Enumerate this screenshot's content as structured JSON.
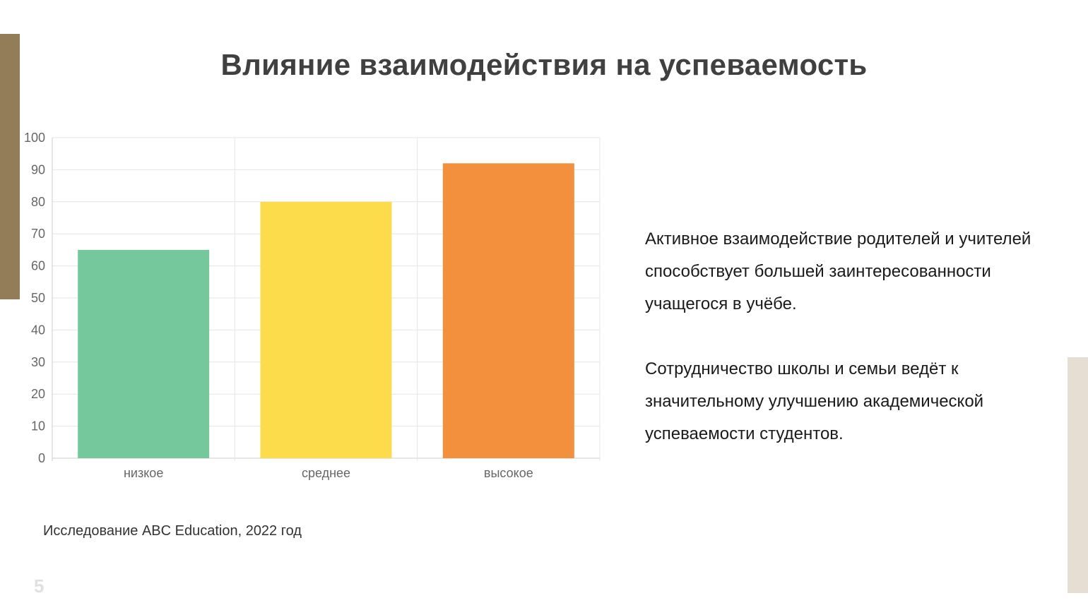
{
  "slide": {
    "title": "Влияние взаимодействия на успеваемость",
    "paragraphs": [
      "Активное взаимодействие родителей и учителей способствует большей заинтересованности учащегося в учёбе.",
      "Сотрудничество школы и семьи ведёт к значительному улучшению академической успеваемости студентов."
    ],
    "source": "Исследование ABC Education, 2022 год",
    "page_number": "5"
  },
  "colors": {
    "accent_left": "#927d58",
    "accent_right": "#e6ded3",
    "grid": "#e6e6e6",
    "axis": "#cccccc",
    "tick_text": "#666666"
  },
  "chart_data": {
    "type": "bar",
    "categories": [
      "низкое",
      "среднее",
      "высокое"
    ],
    "values": [
      65,
      80,
      92
    ],
    "bar_colors": [
      "#74c89c",
      "#fddc4c",
      "#f2903e"
    ],
    "ylim": [
      0,
      100
    ],
    "yticks": [
      "0",
      "10",
      "20",
      "30",
      "40",
      "50",
      "60",
      "70",
      "80",
      "90",
      "100"
    ],
    "grid": true,
    "legend": false
  }
}
